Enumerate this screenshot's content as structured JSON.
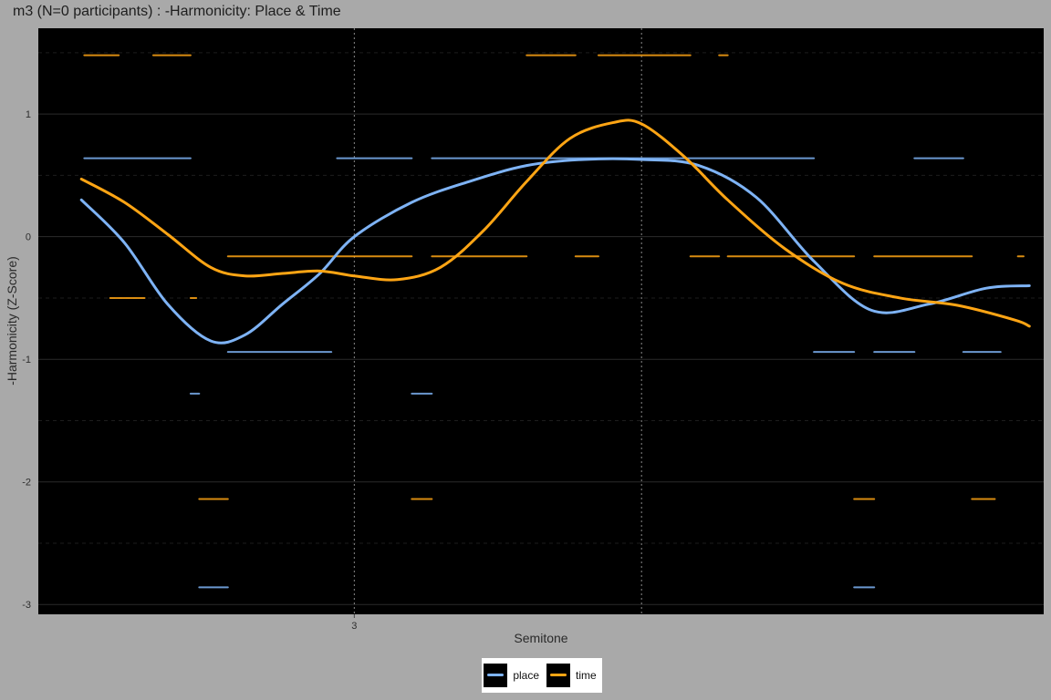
{
  "chart_data": {
    "type": "line",
    "title": "m3 (N=0 participants) : -Harmonicity: Place & Time",
    "xlabel": "Semitone",
    "ylabel": "-Harmonicity (Z-Score)",
    "xlim": [
      1.9,
      5.4
    ],
    "ylim": [
      -3.08,
      1.7
    ],
    "x_ticks": [
      3
    ],
    "x_tick_labels": [
      "3"
    ],
    "y_ticks": [
      -3,
      -2,
      -1,
      0,
      1
    ],
    "y_tick_labels": [
      "-3",
      "-2",
      "-1",
      "0",
      "1"
    ],
    "vlines": [
      3.0,
      4.0
    ],
    "grid": true,
    "legend_position": "bottom",
    "background": "#000000",
    "series": [
      {
        "name": "place",
        "color": "#7eb3f5",
        "x": [
          2.05,
          2.2,
          2.35,
          2.5,
          2.62,
          2.75,
          2.88,
          3.0,
          3.2,
          3.4,
          3.6,
          3.8,
          4.0,
          4.2,
          4.4,
          4.6,
          4.8,
          5.0,
          5.2,
          5.35
        ],
        "y": [
          0.3,
          -0.05,
          -0.55,
          -0.85,
          -0.8,
          -0.55,
          -0.3,
          0.0,
          0.28,
          0.45,
          0.58,
          0.63,
          0.63,
          0.58,
          0.32,
          -0.2,
          -0.6,
          -0.55,
          -0.42,
          -0.4
        ]
      },
      {
        "name": "time",
        "color": "#ffa514",
        "x": [
          2.05,
          2.2,
          2.35,
          2.5,
          2.62,
          2.75,
          2.88,
          3.0,
          3.15,
          3.3,
          3.45,
          3.6,
          3.75,
          3.9,
          4.0,
          4.15,
          4.3,
          4.5,
          4.7,
          4.9,
          5.1,
          5.3,
          5.35
        ],
        "y": [
          0.47,
          0.28,
          0.02,
          -0.25,
          -0.32,
          -0.3,
          -0.28,
          -0.32,
          -0.35,
          -0.25,
          0.05,
          0.45,
          0.8,
          0.93,
          0.92,
          0.65,
          0.3,
          -0.1,
          -0.38,
          -0.5,
          -0.56,
          -0.68,
          -0.73
        ]
      }
    ],
    "segments": [
      {
        "series": "time",
        "x0": 2.06,
        "x1": 2.18,
        "y": 1.48
      },
      {
        "series": "time",
        "x0": 2.3,
        "x1": 2.43,
        "y": 1.48
      },
      {
        "series": "time",
        "x0": 3.6,
        "x1": 3.77,
        "y": 1.48
      },
      {
        "series": "time",
        "x0": 3.85,
        "x1": 4.17,
        "y": 1.48
      },
      {
        "series": "time",
        "x0": 4.27,
        "x1": 4.3,
        "y": 1.48
      },
      {
        "series": "place",
        "x0": 2.06,
        "x1": 2.43,
        "y": 0.64
      },
      {
        "series": "place",
        "x0": 2.94,
        "x1": 3.2,
        "y": 0.64
      },
      {
        "series": "place",
        "x0": 3.27,
        "x1": 4.6,
        "y": 0.64
      },
      {
        "series": "place",
        "x0": 4.95,
        "x1": 5.12,
        "y": 0.64
      },
      {
        "series": "time",
        "x0": 2.56,
        "x1": 3.2,
        "y": -0.16
      },
      {
        "series": "time",
        "x0": 3.27,
        "x1": 3.6,
        "y": -0.16
      },
      {
        "series": "time",
        "x0": 3.77,
        "x1": 3.85,
        "y": -0.16
      },
      {
        "series": "time",
        "x0": 4.17,
        "x1": 4.27,
        "y": -0.16
      },
      {
        "series": "time",
        "x0": 4.3,
        "x1": 4.74,
        "y": -0.16
      },
      {
        "series": "time",
        "x0": 4.81,
        "x1": 5.15,
        "y": -0.16
      },
      {
        "series": "time",
        "x0": 5.31,
        "x1": 5.33,
        "y": -0.16
      },
      {
        "series": "time",
        "x0": 2.15,
        "x1": 2.27,
        "y": -0.5
      },
      {
        "series": "time",
        "x0": 2.43,
        "x1": 2.45,
        "y": -0.5
      },
      {
        "series": "place",
        "x0": 2.56,
        "x1": 2.92,
        "y": -0.94
      },
      {
        "series": "place",
        "x0": 4.6,
        "x1": 4.74,
        "y": -0.94
      },
      {
        "series": "place",
        "x0": 4.81,
        "x1": 4.95,
        "y": -0.94
      },
      {
        "series": "place",
        "x0": 5.12,
        "x1": 5.25,
        "y": -0.94
      },
      {
        "series": "place",
        "x0": 2.43,
        "x1": 2.46,
        "y": -1.28
      },
      {
        "series": "place",
        "x0": 3.2,
        "x1": 3.27,
        "y": -1.28
      },
      {
        "series": "time",
        "x0": 2.46,
        "x1": 2.56,
        "y": -2.14
      },
      {
        "series": "time",
        "x0": 3.2,
        "x1": 3.27,
        "y": -2.14
      },
      {
        "series": "time",
        "x0": 4.74,
        "x1": 4.81,
        "y": -2.14
      },
      {
        "series": "time",
        "x0": 5.15,
        "x1": 5.23,
        "y": -2.14
      },
      {
        "series": "place",
        "x0": 2.46,
        "x1": 2.56,
        "y": -2.86
      },
      {
        "series": "place",
        "x0": 4.74,
        "x1": 4.81,
        "y": -2.86
      }
    ]
  },
  "legend": {
    "items": [
      {
        "label": "place",
        "color": "#7eb3f5"
      },
      {
        "label": "time",
        "color": "#ffa514"
      }
    ]
  }
}
